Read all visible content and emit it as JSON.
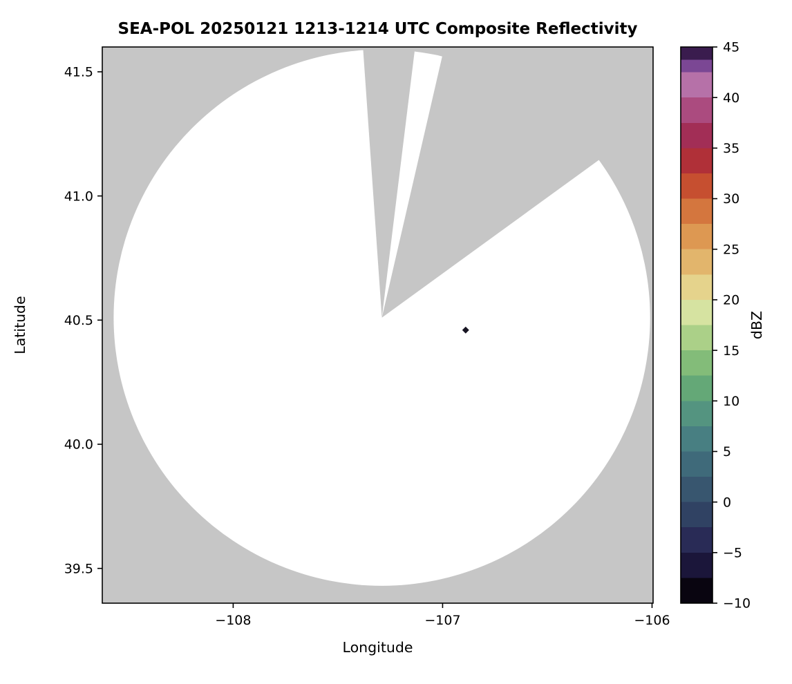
{
  "chart_data": {
    "type": "heatmap",
    "title": "SEA-POL 20250121 1213-1214 UTC Composite Reflectivity",
    "xlabel": "Longitude",
    "ylabel": "Latitude",
    "xlim": [
      -108.625,
      -105.995
    ],
    "ylim": [
      39.36,
      41.6
    ],
    "grid": false,
    "legend": "none",
    "plot_background_color": "#c6c6c6",
    "coverage_color": "#ffffff",
    "x_ticks": [
      {
        "value": -108,
        "label": "−108"
      },
      {
        "value": -107,
        "label": "−107"
      },
      {
        "value": -106,
        "label": "−106"
      }
    ],
    "y_ticks": [
      {
        "value": 41.5,
        "label": "41.5"
      },
      {
        "value": 41.0,
        "label": "41.0"
      },
      {
        "value": 40.5,
        "label": "40.5"
      },
      {
        "value": 40.0,
        "label": "40.0"
      },
      {
        "value": 39.5,
        "label": "39.5"
      }
    ],
    "radar": {
      "center_lon": -107.29,
      "center_lat": 40.51,
      "range_radius_deg_lat": 1.08,
      "blocked_sectors_azimuth_deg": [
        {
          "from": -4,
          "to": 7
        },
        {
          "from": 13,
          "to": 54
        }
      ]
    },
    "echoes": [
      {
        "lon": -106.89,
        "lat": 40.46,
        "color": "#181523"
      }
    ],
    "colorbar": {
      "label": "dBZ",
      "min": -10,
      "max": 45,
      "tick_step": 5,
      "ticks": [
        {
          "value": 45,
          "label": "45"
        },
        {
          "value": 40,
          "label": "40"
        },
        {
          "value": 35,
          "label": "35"
        },
        {
          "value": 30,
          "label": "30"
        },
        {
          "value": 25,
          "label": "25"
        },
        {
          "value": 20,
          "label": "20"
        },
        {
          "value": 15,
          "label": "15"
        },
        {
          "value": 10,
          "label": "10"
        },
        {
          "value": 5,
          "label": "5"
        },
        {
          "value": 0,
          "label": "0"
        },
        {
          "value": -5,
          "label": "−5"
        },
        {
          "value": -10,
          "label": "−10"
        }
      ],
      "bands": [
        {
          "from": -10,
          "to": -7.5,
          "color": "#090510"
        },
        {
          "from": -7.5,
          "to": -5,
          "color": "#1b163a"
        },
        {
          "from": -5,
          "to": -2.5,
          "color": "#292b56"
        },
        {
          "from": -2.5,
          "to": 0,
          "color": "#304263"
        },
        {
          "from": 0,
          "to": 2.5,
          "color": "#38566f"
        },
        {
          "from": 2.5,
          "to": 5,
          "color": "#3f6a7a"
        },
        {
          "from": 5,
          "to": 7.5,
          "color": "#487f82"
        },
        {
          "from": 7.5,
          "to": 10,
          "color": "#549480"
        },
        {
          "from": 10,
          "to": 12.5,
          "color": "#64a877"
        },
        {
          "from": 12.5,
          "to": 15,
          "color": "#83bc79"
        },
        {
          "from": 15,
          "to": 17.5,
          "color": "#abd088"
        },
        {
          "from": 17.5,
          "to": 20,
          "color": "#d6e3a1"
        },
        {
          "from": 20,
          "to": 22.5,
          "color": "#e5d38c"
        },
        {
          "from": 22.5,
          "to": 25,
          "color": "#e2b56c"
        },
        {
          "from": 25,
          "to": 27.5,
          "color": "#dd9852"
        },
        {
          "from": 27.5,
          "to": 30,
          "color": "#d4763e"
        },
        {
          "from": 30,
          "to": 32.5,
          "color": "#c64f30"
        },
        {
          "from": 32.5,
          "to": 35,
          "color": "#b03038"
        },
        {
          "from": 35,
          "to": 37.5,
          "color": "#a22e56"
        },
        {
          "from": 37.5,
          "to": 40,
          "color": "#ab4b7f"
        },
        {
          "from": 40,
          "to": 42.5,
          "color": "#b671a8"
        },
        {
          "from": 42.5,
          "to": 43.75,
          "color": "#7b4794"
        },
        {
          "from": 43.75,
          "to": 45,
          "color": "#3a1c4e"
        }
      ]
    }
  }
}
